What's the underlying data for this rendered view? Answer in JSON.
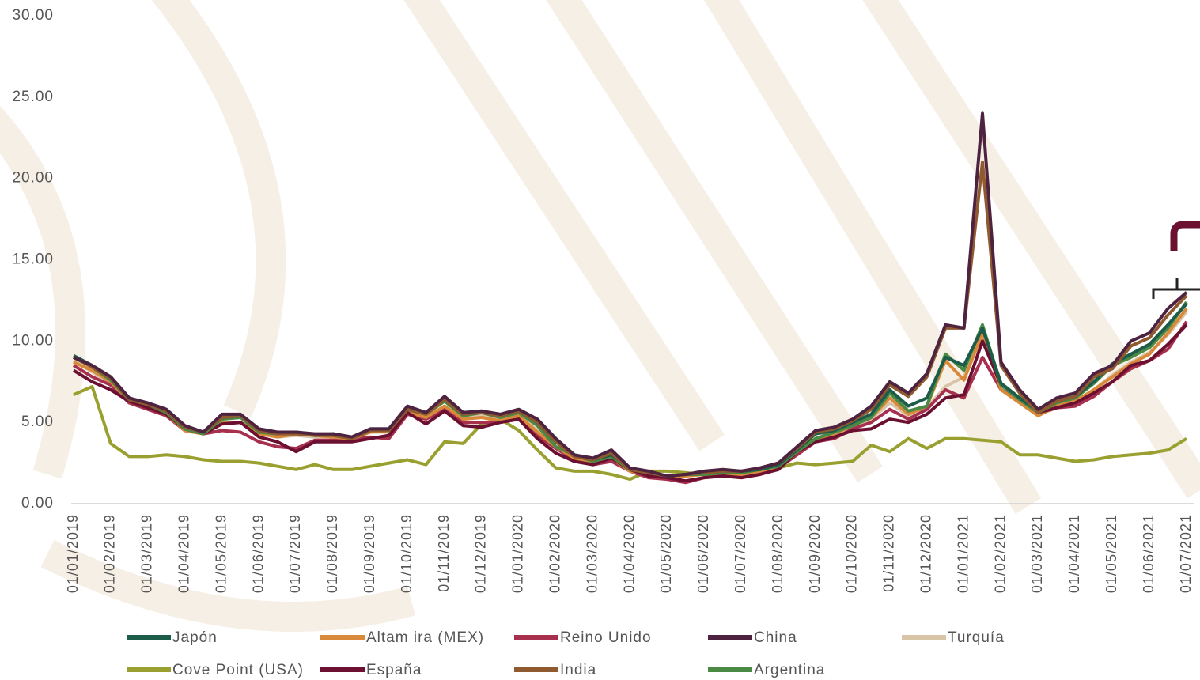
{
  "chart_data": {
    "type": "line",
    "categories": [
      "01/01/2019",
      null,
      "01/02/2019",
      null,
      "01/03/2019",
      null,
      "01/04/2019",
      null,
      "01/05/2019",
      null,
      "01/06/2019",
      null,
      "01/07/2019",
      null,
      "01/08/2019",
      null,
      "01/09/2019",
      null,
      "01/10/2019",
      null,
      "01/11/2019",
      null,
      "01/12/2019",
      null,
      "01/01/2020",
      null,
      "01/02/2020",
      null,
      "01/03/2020",
      null,
      "01/04/2020",
      null,
      "01/05/2020",
      null,
      "01/06/2020",
      null,
      "01/07/2020",
      null,
      "01/08/2020",
      null,
      "01/09/2020",
      null,
      "01/10/2020",
      null,
      "01/11/2020",
      null,
      "01/12/2020",
      null,
      "01/01/2021",
      null,
      "01/02/2021",
      null,
      "01/03/2021",
      null,
      "01/04/2021",
      null,
      "01/05/2021",
      null,
      "01/06/2021",
      null,
      "01/07/2021"
    ],
    "ylim": [
      0,
      30
    ],
    "yticks": [
      {
        "value": 0,
        "label": "0.00"
      },
      {
        "value": 5,
        "label": "5.00"
      },
      {
        "value": 10,
        "label": "10.00"
      },
      {
        "value": 15,
        "label": "15.00"
      },
      {
        "value": 20,
        "label": "20.00"
      },
      {
        "value": 25,
        "label": "25.00"
      },
      {
        "value": 30,
        "label": "30.00"
      }
    ],
    "series": [
      {
        "name": "Japón",
        "color": "#1e5c4a",
        "values": [
          9.1,
          8.5,
          7.8,
          6.5,
          6.1,
          5.7,
          4.7,
          4.4,
          5.3,
          5.4,
          4.5,
          4.3,
          4.4,
          4.2,
          4.3,
          4.1,
          4.6,
          4.6,
          5.9,
          5.6,
          6.4,
          5.5,
          5.7,
          5.4,
          5.7,
          5.0,
          3.8,
          3.0,
          2.7,
          3.0,
          2.2,
          1.9,
          1.7,
          1.8,
          1.9,
          2.0,
          2.0,
          2.1,
          2.4,
          3.3,
          4.3,
          4.5,
          5.0,
          5.5,
          7.0,
          6.0,
          6.5,
          9.0,
          8.5,
          10.8,
          7.4,
          6.5,
          5.7,
          6.3,
          6.6,
          7.5,
          8.6,
          9.2,
          9.8,
          11.0,
          12.3
        ]
      },
      {
        "name": "Altam ira (MEX)",
        "color": "#d9893a",
        "values": [
          8.7,
          8.2,
          7.5,
          6.3,
          5.9,
          5.5,
          4.5,
          4.3,
          5.0,
          5.0,
          4.3,
          4.1,
          4.3,
          4.2,
          4.1,
          4.0,
          4.4,
          4.5,
          5.6,
          5.3,
          6.0,
          5.2,
          5.3,
          5.1,
          5.4,
          4.4,
          3.5,
          2.8,
          2.5,
          2.8,
          2.0,
          1.8,
          1.6,
          1.7,
          1.8,
          1.8,
          1.8,
          2.0,
          2.3,
          3.2,
          4.0,
          4.3,
          4.8,
          5.3,
          6.5,
          5.5,
          6.0,
          8.8,
          7.6,
          10.5,
          7.0,
          6.2,
          5.4,
          6.0,
          6.3,
          7.0,
          7.8,
          8.6,
          9.2,
          10.5,
          12.0
        ]
      },
      {
        "name": "Reino Unido",
        "color": "#a8304f",
        "values": [
          8.5,
          7.8,
          7.3,
          6.2,
          5.8,
          5.4,
          4.5,
          4.3,
          4.5,
          4.4,
          3.8,
          3.5,
          3.4,
          3.9,
          3.9,
          4.0,
          4.1,
          4.0,
          5.5,
          5.2,
          5.8,
          5.0,
          5.0,
          5.0,
          5.2,
          4.2,
          3.4,
          2.7,
          2.4,
          2.6,
          2.0,
          1.6,
          1.5,
          1.3,
          1.6,
          1.7,
          1.6,
          1.8,
          2.2,
          3.0,
          3.8,
          4.0,
          4.6,
          5.0,
          5.8,
          5.2,
          5.8,
          7.0,
          6.5,
          9.0,
          7.0,
          6.3,
          5.5,
          5.9,
          6.0,
          6.6,
          7.5,
          8.3,
          8.8,
          9.5,
          11.2
        ]
      },
      {
        "name": "China",
        "color": "#4e2340",
        "values": [
          9.0,
          8.5,
          7.8,
          6.5,
          6.2,
          5.8,
          4.8,
          4.4,
          5.5,
          5.5,
          4.6,
          4.4,
          4.4,
          4.3,
          4.3,
          4.1,
          4.6,
          4.6,
          6.0,
          5.6,
          6.6,
          5.6,
          5.7,
          5.5,
          5.8,
          5.2,
          4.0,
          3.0,
          2.8,
          3.3,
          2.2,
          2.0,
          1.7,
          1.8,
          2.0,
          2.1,
          2.0,
          2.2,
          2.5,
          3.5,
          4.5,
          4.7,
          5.2,
          6.0,
          7.5,
          6.8,
          8.0,
          11.0,
          10.8,
          24.0,
          8.7,
          7.0,
          5.8,
          6.5,
          6.8,
          8.0,
          8.5,
          10.0,
          10.5,
          12.0,
          13.0
        ]
      },
      {
        "name": "Turquía",
        "color": "#d9c4a8",
        "values": [
          8.8,
          8.1,
          7.4,
          6.3,
          5.9,
          5.4,
          4.5,
          4.3,
          5.0,
          5.0,
          4.4,
          4.1,
          4.2,
          4.1,
          4.1,
          4.0,
          4.4,
          4.4,
          5.7,
          5.3,
          6.0,
          5.3,
          5.4,
          5.2,
          5.5,
          4.5,
          3.5,
          2.8,
          2.5,
          2.8,
          2.1,
          1.8,
          1.6,
          1.7,
          1.8,
          1.8,
          1.9,
          2.0,
          2.3,
          3.1,
          3.9,
          4.2,
          4.7,
          5.2,
          6.2,
          5.4,
          5.9,
          7.2,
          7.8,
          10.5,
          7.2,
          6.4,
          5.5,
          6.1,
          6.3,
          7.0,
          7.9,
          8.7,
          9.3,
          10.4,
          11.8
        ]
      },
      {
        "name": "Cove Point (USA)",
        "color": "#9aa030",
        "values": [
          6.7,
          7.2,
          3.7,
          2.9,
          2.9,
          3.0,
          2.9,
          2.7,
          2.6,
          2.6,
          2.5,
          2.3,
          2.1,
          2.4,
          2.1,
          2.1,
          2.3,
          2.5,
          2.7,
          2.4,
          3.8,
          3.7,
          4.9,
          5.2,
          4.5,
          3.3,
          2.2,
          2.0,
          2.0,
          1.8,
          1.5,
          2.0,
          2.0,
          1.9,
          1.8,
          1.9,
          1.9,
          2.1,
          2.2,
          2.5,
          2.4,
          2.5,
          2.6,
          3.6,
          3.2,
          4.0,
          3.4,
          4.0,
          4.0,
          3.9,
          3.8,
          3.0,
          3.0,
          2.8,
          2.6,
          2.7,
          2.9,
          3.0,
          3.1,
          3.3,
          4.0
        ]
      },
      {
        "name": "España",
        "color": "#6b1030",
        "values": [
          8.2,
          7.5,
          7.0,
          6.3,
          5.9,
          5.5,
          4.6,
          4.3,
          4.9,
          5.0,
          4.1,
          3.8,
          3.2,
          3.8,
          3.8,
          3.8,
          4.0,
          4.2,
          5.6,
          4.9,
          5.7,
          4.8,
          4.7,
          5.0,
          5.2,
          4.0,
          3.1,
          2.6,
          2.4,
          2.8,
          2.1,
          1.7,
          1.6,
          1.4,
          1.6,
          1.7,
          1.6,
          1.8,
          2.1,
          3.2,
          3.8,
          4.1,
          4.5,
          4.6,
          5.2,
          5.0,
          5.5,
          6.5,
          6.7,
          10.0,
          7.3,
          6.5,
          5.6,
          5.9,
          6.2,
          6.8,
          7.5,
          8.5,
          8.8,
          9.8,
          11.0
        ]
      },
      {
        "name": "India",
        "color": "#8f5a30",
        "values": [
          9.0,
          8.4,
          7.7,
          6.4,
          6.1,
          5.7,
          4.7,
          4.4,
          5.3,
          5.4,
          4.5,
          4.3,
          4.3,
          4.2,
          4.2,
          4.0,
          4.5,
          4.5,
          5.8,
          5.5,
          6.4,
          5.5,
          5.6,
          5.4,
          5.7,
          5.0,
          3.8,
          2.9,
          2.7,
          3.1,
          2.1,
          1.9,
          1.7,
          1.8,
          1.9,
          2.0,
          2.0,
          2.2,
          2.5,
          3.4,
          4.4,
          4.6,
          5.1,
          5.8,
          7.3,
          6.6,
          7.8,
          10.8,
          10.8,
          21.0,
          8.5,
          6.8,
          5.6,
          6.3,
          6.6,
          7.8,
          8.3,
          9.7,
          10.2,
          11.6,
          12.8
        ]
      },
      {
        "name": "Argentina",
        "color": "#4a8a45",
        "values": [
          9.0,
          8.4,
          7.6,
          6.4,
          6.1,
          5.6,
          4.6,
          4.3,
          5.2,
          5.3,
          4.4,
          4.3,
          4.4,
          4.2,
          4.2,
          4.0,
          4.5,
          4.6,
          5.8,
          5.5,
          6.3,
          5.4,
          5.6,
          5.3,
          5.6,
          4.8,
          3.5,
          3.0,
          2.6,
          2.9,
          2.1,
          1.9,
          1.7,
          1.8,
          1.8,
          1.9,
          1.9,
          2.1,
          2.3,
          3.2,
          4.0,
          4.4,
          4.8,
          5.3,
          6.8,
          5.7,
          6.0,
          9.2,
          8.2,
          11.0,
          7.3,
          6.4,
          5.6,
          6.2,
          6.5,
          7.4,
          8.5,
          9.0,
          9.6,
          10.8,
          12.4
        ]
      }
    ]
  }
}
